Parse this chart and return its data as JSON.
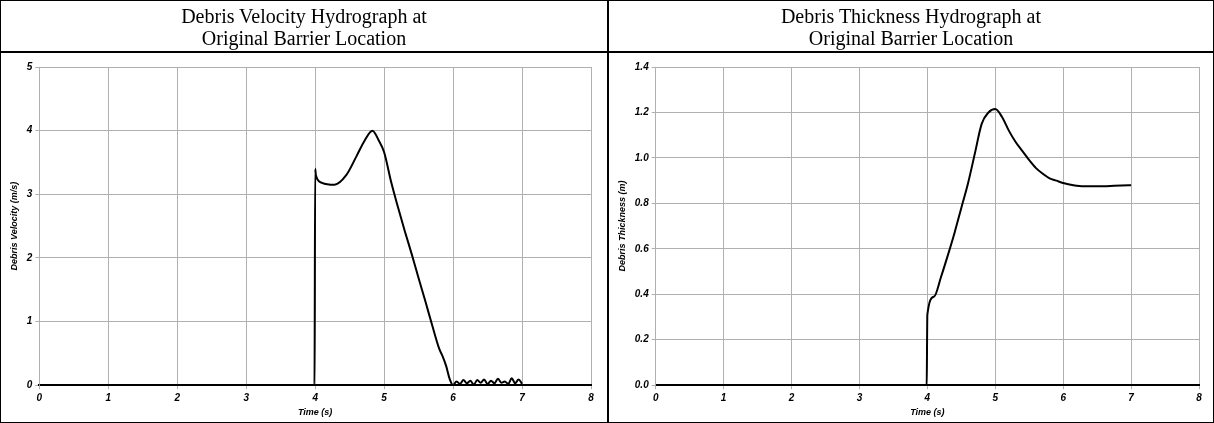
{
  "chart_data": [
    {
      "type": "line",
      "title": "Debris Velocity Hydrograph at\nOriginal Barrier Location",
      "xlabel": "Time (s)",
      "ylabel": "Debris Velocity (m/s)",
      "x": [
        0,
        3.99,
        4.0,
        4.01,
        4.1,
        4.28,
        4.45,
        4.6,
        4.72,
        4.83,
        4.92,
        5.0,
        5.1,
        5.2,
        5.3,
        5.4,
        5.5,
        5.6,
        5.7,
        5.8,
        5.85,
        5.9,
        5.95,
        6.0,
        6.05,
        6.1,
        6.15,
        6.2,
        6.25,
        6.3,
        6.35,
        6.4,
        6.45,
        6.5,
        6.55,
        6.6,
        6.65,
        6.7,
        6.75,
        6.8,
        6.85,
        6.9,
        6.95,
        7.0
      ],
      "series": [
        {
          "color": "#000000",
          "values": [
            0,
            0,
            3.4,
            3.3,
            3.18,
            3.15,
            3.3,
            3.6,
            3.85,
            4.0,
            3.85,
            3.66,
            3.2,
            2.8,
            2.42,
            2.06,
            1.68,
            1.31,
            0.93,
            0.57,
            0.45,
            0.3,
            0.1,
            0,
            0.06,
            0.02,
            0.08,
            0.03,
            0.07,
            0.01,
            0.08,
            0.04,
            0.09,
            0.02,
            0.07,
            0.03,
            0.1,
            0.04,
            0.06,
            0.02,
            0.11,
            0.03,
            0.09,
            0.02
          ]
        }
      ],
      "xlim": [
        0,
        8
      ],
      "xticks": [
        0,
        1,
        2,
        3,
        4,
        5,
        6,
        7,
        8
      ],
      "ylim": [
        0,
        5
      ],
      "yticks": [
        0,
        1,
        2,
        3,
        4,
        5
      ],
      "grid": true,
      "legend": false,
      "marker": "none",
      "line_style": "solid"
    },
    {
      "type": "line",
      "title": "Debris Thickness Hydrograph at\nOriginal Barrier Location",
      "xlabel": "Time (s)",
      "ylabel": "Debris Thickness (m)",
      "x": [
        0,
        3.99,
        4.0,
        4.1,
        4.2,
        4.3,
        4.4,
        4.5,
        4.6,
        4.7,
        4.8,
        4.9,
        5.0,
        5.1,
        5.2,
        5.3,
        5.4,
        5.5,
        5.6,
        5.7,
        5.8,
        5.9,
        6.0,
        6.15,
        6.3,
        6.5,
        6.75,
        7.0
      ],
      "series": [
        {
          "color": "#000000",
          "values": [
            0,
            0,
            0.31,
            0.39,
            0.475,
            0.57,
            0.67,
            0.78,
            0.89,
            1.02,
            1.15,
            1.2,
            1.215,
            1.18,
            1.12,
            1.07,
            1.03,
            0.99,
            0.955,
            0.93,
            0.91,
            0.9,
            0.89,
            0.88,
            0.875,
            0.875,
            0.877,
            0.88
          ]
        }
      ],
      "xlim": [
        0,
        8
      ],
      "xticks": [
        0,
        1,
        2,
        3,
        4,
        5,
        6,
        7,
        8
      ],
      "ylim": [
        0,
        1.4
      ],
      "yticks": [
        {
          "value": 0,
          "label": "0.0"
        },
        {
          "value": 0.2,
          "label": "0.2"
        },
        {
          "value": 0.4,
          "label": "0.4"
        },
        {
          "value": 0.6,
          "label": "0.6"
        },
        {
          "value": 0.8,
          "label": "0.8"
        },
        {
          "value": 1.0,
          "label": "1.0"
        },
        {
          "value": 1.2,
          "label": "1.2"
        },
        {
          "value": 1.4,
          "label": "1.4"
        }
      ],
      "grid": true,
      "legend": false,
      "marker": "none",
      "line_style": "solid"
    }
  ]
}
